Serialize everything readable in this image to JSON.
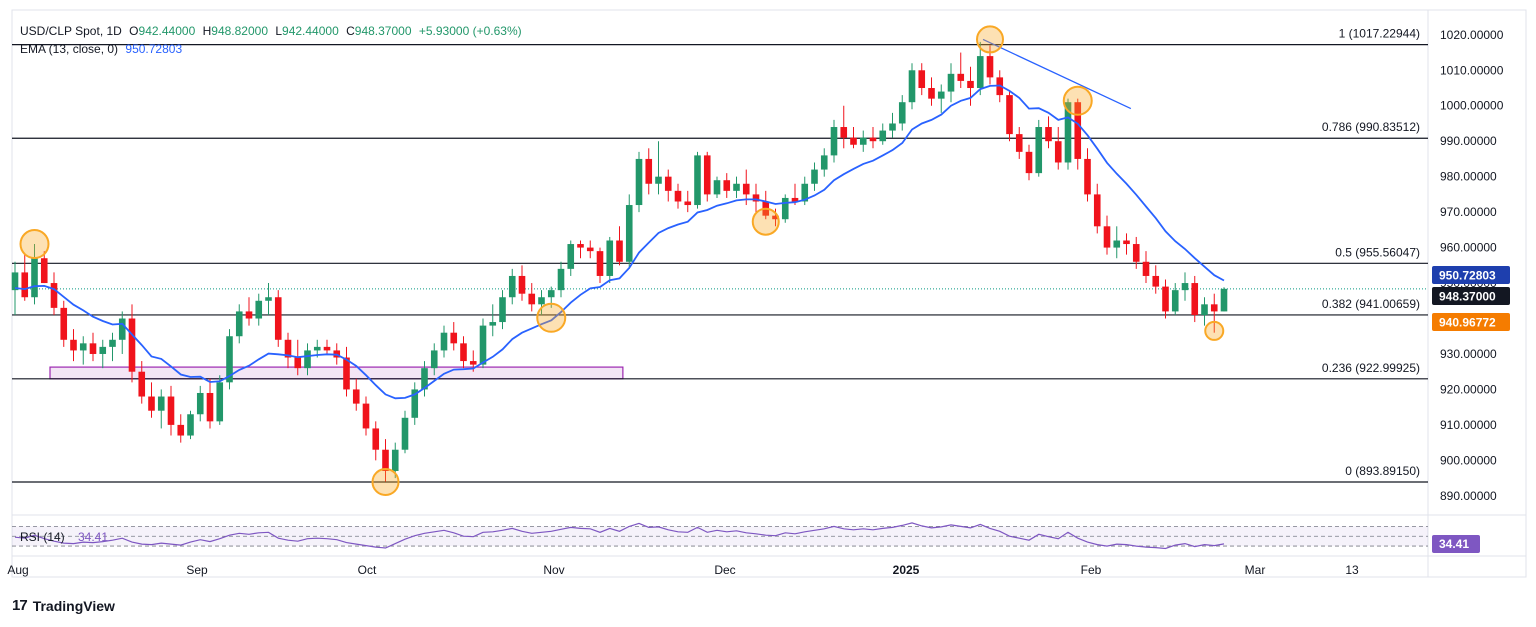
{
  "header": {
    "symbol_label": "USD/CLP Spot, 1D",
    "o_label": "O",
    "o_value": "942.44000",
    "h_label": "H",
    "h_value": "948.82000",
    "l_label": "L",
    "l_value": "942.44000",
    "c_label": "C",
    "c_value": "948.37000",
    "change": "+5.93000 (+0.63%)",
    "ema_label": "EMA (13, close, 0)",
    "ema_value": "950.72803"
  },
  "branding": {
    "logo_text": "TradingView"
  },
  "colors": {
    "up": "#22976a",
    "down": "#f0131c",
    "ema": "#2962ff",
    "fib_line": "#131722",
    "rsi": "#7e57c2",
    "marker": "#f9a825",
    "box_fill": "#f3e5f5",
    "box_border": "#9c27b0",
    "price_tag_bg": "#131722",
    "ema_tag_bg": "#1e3fae",
    "orange_tag_bg": "#f57c00",
    "rsi_tag_bg": "#7e57c2"
  },
  "chart_data": {
    "type": "candlestick",
    "title": "USD/CLP Spot, 1D",
    "x_labels": [
      "Aug",
      "Sep",
      "Oct",
      "Nov",
      "Dec",
      "2025",
      "Feb",
      "Mar",
      "13"
    ],
    "y_ticks": [
      "1020.00000",
      "1010.00000",
      "1000.00000",
      "990.00000",
      "980.00000",
      "970.00000",
      "960.00000",
      "950.00000",
      "940.00000",
      "930.00000",
      "920.00000",
      "910.00000",
      "900.00000",
      "890.00000"
    ],
    "ylim": [
      886,
      1027
    ],
    "fib_levels": [
      {
        "label": "1 (1017.22944)",
        "value": 1017.22944
      },
      {
        "label": "0.786 (990.83512)",
        "value": 990.83512
      },
      {
        "label": "0.5 (955.56047)",
        "value": 955.56047
      },
      {
        "label": "0.382 (941.00659)",
        "value": 941.00659
      },
      {
        "label": "0.236 (922.99925)",
        "value": 922.99925
      },
      {
        "label": "0 (893.89150)",
        "value": 893.8915
      }
    ],
    "price_tags": [
      {
        "label": "950.72803",
        "value": 950.72803,
        "kind": "ema"
      },
      {
        "label": "948.37000",
        "value": 948.37,
        "kind": "price"
      },
      {
        "label": "940.96772",
        "value": 940.96772,
        "kind": "orange"
      }
    ],
    "last_price": 948.37,
    "support_box": {
      "x0": 0.0,
      "x1": 0.43,
      "top": 926.3,
      "bottom": 923.0
    },
    "trendline": {
      "x0": 0.94,
      "v0": 1018.7,
      "x1": 1.115,
      "v1": 999.2
    },
    "candles": [
      {
        "o": 948,
        "h": 956,
        "l": 941,
        "c": 953
      },
      {
        "o": 953,
        "h": 958,
        "l": 945,
        "c": 946
      },
      {
        "o": 946,
        "h": 961,
        "l": 944,
        "c": 957
      },
      {
        "o": 957,
        "h": 959,
        "l": 950,
        "c": 950
      },
      {
        "o": 950,
        "h": 953,
        "l": 941,
        "c": 943
      },
      {
        "o": 943,
        "h": 945,
        "l": 932,
        "c": 934
      },
      {
        "o": 934,
        "h": 937,
        "l": 928,
        "c": 931
      },
      {
        "o": 931,
        "h": 935,
        "l": 927,
        "c": 933
      },
      {
        "o": 933,
        "h": 936,
        "l": 928,
        "c": 930
      },
      {
        "o": 930,
        "h": 934,
        "l": 926,
        "c": 932
      },
      {
        "o": 932,
        "h": 936,
        "l": 928,
        "c": 934
      },
      {
        "o": 934,
        "h": 942,
        "l": 930,
        "c": 940
      },
      {
        "o": 940,
        "h": 944,
        "l": 922,
        "c": 925
      },
      {
        "o": 925,
        "h": 928,
        "l": 916,
        "c": 918
      },
      {
        "o": 918,
        "h": 922,
        "l": 912,
        "c": 914
      },
      {
        "o": 914,
        "h": 920,
        "l": 909,
        "c": 918
      },
      {
        "o": 918,
        "h": 921,
        "l": 907,
        "c": 910
      },
      {
        "o": 910,
        "h": 913,
        "l": 905,
        "c": 907
      },
      {
        "o": 907,
        "h": 914,
        "l": 906,
        "c": 913
      },
      {
        "o": 913,
        "h": 921,
        "l": 911,
        "c": 919
      },
      {
        "o": 919,
        "h": 923,
        "l": 909,
        "c": 911
      },
      {
        "o": 911,
        "h": 924,
        "l": 910,
        "c": 922
      },
      {
        "o": 922,
        "h": 937,
        "l": 920,
        "c": 935
      },
      {
        "o": 935,
        "h": 944,
        "l": 933,
        "c": 942
      },
      {
        "o": 942,
        "h": 946,
        "l": 938,
        "c": 940
      },
      {
        "o": 940,
        "h": 947,
        "l": 938,
        "c": 945
      },
      {
        "o": 945,
        "h": 950,
        "l": 941,
        "c": 946
      },
      {
        "o": 946,
        "h": 948,
        "l": 932,
        "c": 934
      },
      {
        "o": 934,
        "h": 936,
        "l": 926,
        "c": 929
      },
      {
        "o": 929,
        "h": 934,
        "l": 924,
        "c": 926
      },
      {
        "o": 926,
        "h": 933,
        "l": 924,
        "c": 931
      },
      {
        "o": 931,
        "h": 934,
        "l": 929,
        "c": 932
      },
      {
        "o": 932,
        "h": 934,
        "l": 930,
        "c": 931
      },
      {
        "o": 931,
        "h": 933,
        "l": 927,
        "c": 929
      },
      {
        "o": 929,
        "h": 932,
        "l": 918,
        "c": 920
      },
      {
        "o": 920,
        "h": 923,
        "l": 914,
        "c": 916
      },
      {
        "o": 916,
        "h": 918,
        "l": 907,
        "c": 909
      },
      {
        "o": 909,
        "h": 911,
        "l": 900,
        "c": 903
      },
      {
        "o": 903,
        "h": 906,
        "l": 894,
        "c": 897
      },
      {
        "o": 897,
        "h": 905,
        "l": 895,
        "c": 903
      },
      {
        "o": 903,
        "h": 914,
        "l": 902,
        "c": 912
      },
      {
        "o": 912,
        "h": 922,
        "l": 910,
        "c": 920
      },
      {
        "o": 920,
        "h": 928,
        "l": 918,
        "c": 926
      },
      {
        "o": 926,
        "h": 933,
        "l": 924,
        "c": 931
      },
      {
        "o": 931,
        "h": 938,
        "l": 929,
        "c": 936
      },
      {
        "o": 936,
        "h": 939,
        "l": 931,
        "c": 933
      },
      {
        "o": 933,
        "h": 935,
        "l": 926,
        "c": 928
      },
      {
        "o": 928,
        "h": 931,
        "l": 925,
        "c": 927
      },
      {
        "o": 927,
        "h": 940,
        "l": 926,
        "c": 938
      },
      {
        "o": 938,
        "h": 944,
        "l": 935,
        "c": 939
      },
      {
        "o": 939,
        "h": 948,
        "l": 937,
        "c": 946
      },
      {
        "o": 946,
        "h": 954,
        "l": 944,
        "c": 952
      },
      {
        "o": 952,
        "h": 955,
        "l": 945,
        "c": 947
      },
      {
        "o": 947,
        "h": 950,
        "l": 942,
        "c": 944
      },
      {
        "o": 944,
        "h": 948,
        "l": 941,
        "c": 946
      },
      {
        "o": 946,
        "h": 949,
        "l": 943,
        "c": 948
      },
      {
        "o": 948,
        "h": 956,
        "l": 946,
        "c": 954
      },
      {
        "o": 954,
        "h": 962,
        "l": 952,
        "c": 961
      },
      {
        "o": 961,
        "h": 962,
        "l": 957,
        "c": 960
      },
      {
        "o": 960,
        "h": 962,
        "l": 957,
        "c": 959
      },
      {
        "o": 959,
        "h": 960,
        "l": 950,
        "c": 952
      },
      {
        "o": 952,
        "h": 963,
        "l": 950,
        "c": 962
      },
      {
        "o": 962,
        "h": 966,
        "l": 955,
        "c": 956
      },
      {
        "o": 956,
        "h": 975,
        "l": 954,
        "c": 972
      },
      {
        "o": 972,
        "h": 987,
        "l": 970,
        "c": 985
      },
      {
        "o": 985,
        "h": 988,
        "l": 975,
        "c": 978
      },
      {
        "o": 978,
        "h": 990,
        "l": 975,
        "c": 980
      },
      {
        "o": 980,
        "h": 982,
        "l": 973,
        "c": 976
      },
      {
        "o": 976,
        "h": 978,
        "l": 971,
        "c": 973
      },
      {
        "o": 973,
        "h": 976,
        "l": 970,
        "c": 972
      },
      {
        "o": 972,
        "h": 987,
        "l": 971,
        "c": 986
      },
      {
        "o": 986,
        "h": 987,
        "l": 973,
        "c": 975
      },
      {
        "o": 975,
        "h": 980,
        "l": 974,
        "c": 979
      },
      {
        "o": 979,
        "h": 981,
        "l": 974,
        "c": 976
      },
      {
        "o": 976,
        "h": 980,
        "l": 974,
        "c": 978
      },
      {
        "o": 978,
        "h": 982,
        "l": 972,
        "c": 975
      },
      {
        "o": 975,
        "h": 978,
        "l": 970,
        "c": 973
      },
      {
        "o": 973,
        "h": 976,
        "l": 968,
        "c": 969
      },
      {
        "o": 969,
        "h": 971,
        "l": 966,
        "c": 968
      },
      {
        "o": 968,
        "h": 975,
        "l": 967,
        "c": 974
      },
      {
        "o": 974,
        "h": 978,
        "l": 972,
        "c": 973
      },
      {
        "o": 973,
        "h": 980,
        "l": 972,
        "c": 978
      },
      {
        "o": 978,
        "h": 984,
        "l": 976,
        "c": 982
      },
      {
        "o": 982,
        "h": 988,
        "l": 980,
        "c": 986
      },
      {
        "o": 986,
        "h": 996,
        "l": 984,
        "c": 994
      },
      {
        "o": 994,
        "h": 1000,
        "l": 988,
        "c": 991
      },
      {
        "o": 991,
        "h": 994,
        "l": 988,
        "c": 989
      },
      {
        "o": 989,
        "h": 993,
        "l": 987,
        "c": 991
      },
      {
        "o": 991,
        "h": 994,
        "l": 988,
        "c": 990
      },
      {
        "o": 990,
        "h": 995,
        "l": 989,
        "c": 993
      },
      {
        "o": 993,
        "h": 998,
        "l": 991,
        "c": 995
      },
      {
        "o": 995,
        "h": 1003,
        "l": 993,
        "c": 1001
      },
      {
        "o": 1001,
        "h": 1012,
        "l": 999,
        "c": 1010
      },
      {
        "o": 1010,
        "h": 1012,
        "l": 1003,
        "c": 1005
      },
      {
        "o": 1005,
        "h": 1008,
        "l": 1000,
        "c": 1002
      },
      {
        "o": 1002,
        "h": 1006,
        "l": 998,
        "c": 1004
      },
      {
        "o": 1004,
        "h": 1012,
        "l": 1001,
        "c": 1009
      },
      {
        "o": 1009,
        "h": 1015,
        "l": 1005,
        "c": 1007
      },
      {
        "o": 1007,
        "h": 1011,
        "l": 1000,
        "c": 1005
      },
      {
        "o": 1005,
        "h": 1018,
        "l": 1003,
        "c": 1014
      },
      {
        "o": 1014,
        "h": 1017,
        "l": 1006,
        "c": 1008
      },
      {
        "o": 1008,
        "h": 1010,
        "l": 1001,
        "c": 1003
      },
      {
        "o": 1003,
        "h": 1004,
        "l": 990,
        "c": 992
      },
      {
        "o": 992,
        "h": 994,
        "l": 985,
        "c": 987
      },
      {
        "o": 987,
        "h": 989,
        "l": 979,
        "c": 981
      },
      {
        "o": 981,
        "h": 996,
        "l": 980,
        "c": 994
      },
      {
        "o": 994,
        "h": 997,
        "l": 988,
        "c": 990
      },
      {
        "o": 990,
        "h": 994,
        "l": 982,
        "c": 984
      },
      {
        "o": 984,
        "h": 1002,
        "l": 982,
        "c": 1001
      },
      {
        "o": 1001,
        "h": 1002,
        "l": 982,
        "c": 985
      },
      {
        "o": 985,
        "h": 988,
        "l": 973,
        "c": 975
      },
      {
        "o": 975,
        "h": 978,
        "l": 964,
        "c": 966
      },
      {
        "o": 966,
        "h": 969,
        "l": 958,
        "c": 960
      },
      {
        "o": 960,
        "h": 966,
        "l": 957,
        "c": 962
      },
      {
        "o": 962,
        "h": 964,
        "l": 958,
        "c": 961
      },
      {
        "o": 961,
        "h": 963,
        "l": 954,
        "c": 956
      },
      {
        "o": 956,
        "h": 959,
        "l": 950,
        "c": 952
      },
      {
        "o": 952,
        "h": 955,
        "l": 947,
        "c": 949
      },
      {
        "o": 949,
        "h": 951,
        "l": 940,
        "c": 942
      },
      {
        "o": 942,
        "h": 950,
        "l": 941,
        "c": 948
      },
      {
        "o": 948,
        "h": 953,
        "l": 945,
        "c": 950
      },
      {
        "o": 950,
        "h": 952,
        "l": 939,
        "c": 941
      },
      {
        "o": 941,
        "h": 946,
        "l": 938,
        "c": 944
      },
      {
        "o": 944,
        "h": 947,
        "l": 936,
        "c": 942
      },
      {
        "o": 942,
        "h": 948.82,
        "l": 942,
        "c": 948.37
      }
    ],
    "ema": [
      948.6,
      948.3,
      949.1,
      949.2,
      948.3,
      946.1,
      943.9,
      942.3,
      940.5,
      939.3,
      938.3,
      938.5,
      935.5,
      932.5,
      929.3,
      928.6,
      926.5,
      924.2,
      923.5,
      923.6,
      922.1,
      922.3,
      923.8,
      925.5,
      926.7,
      928.5,
      930.1,
      929.9,
      929.6,
      929.1,
      929.4,
      929.7,
      929.9,
      929.8,
      928.4,
      926.6,
      924.0,
      921.2,
      918.6,
      917.5,
      917.6,
      918.6,
      920.4,
      922.4,
      924.4,
      925.6,
      925.7,
      925.9,
      927.6,
      929.2,
      931.3,
      934.2,
      936.0,
      937.2,
      938.4,
      939.5,
      941.8,
      944.5,
      946.7,
      948.5,
      948.9,
      950.8,
      951.3,
      954.3,
      958.6,
      961.4,
      964.1,
      965.5,
      966.5,
      967.3,
      969.9,
      970.6,
      971.8,
      972.5,
      973.3,
      973.6,
      973.6,
      973.0,
      972.3,
      972.6,
      972.8,
      973.5,
      974.7,
      976.3,
      979.0,
      980.7,
      982.2,
      983.6,
      984.5,
      986.0,
      987.5,
      989.5,
      993.3,
      995.0,
      996.0,
      997.5,
      1000.0,
      1001.4,
      1002.2,
      1004.7,
      1005.6,
      1005.7,
      1004.2,
      1002.2,
      999.2,
      999.3,
      998.0,
      996.0,
      996.7,
      994.9,
      991.7,
      987.9,
      983.9,
      980.8,
      978.0,
      974.9,
      971.6,
      968.3,
      964.6,
      961.8,
      959.6,
      957.0,
      954.6,
      952.2,
      950.73
    ],
    "rsi": [
      48,
      46,
      52,
      45,
      40,
      36,
      35,
      38,
      37,
      39,
      42,
      46,
      38,
      34,
      33,
      36,
      34,
      32,
      38,
      43,
      39,
      45,
      52,
      56,
      54,
      57,
      58,
      46,
      42,
      40,
      45,
      46,
      45,
      43,
      37,
      34,
      31,
      28,
      26,
      35,
      44,
      51,
      56,
      59,
      62,
      57,
      50,
      49,
      58,
      59,
      62,
      66,
      60,
      56,
      58,
      60,
      64,
      68,
      66,
      65,
      58,
      66,
      60,
      70,
      76,
      68,
      69,
      63,
      59,
      58,
      68,
      58,
      62,
      59,
      61,
      57,
      55,
      52,
      51,
      57,
      55,
      59,
      62,
      65,
      70,
      65,
      63,
      65,
      63,
      66,
      68,
      72,
      77,
      71,
      67,
      69,
      73,
      70,
      67,
      74,
      66,
      60,
      50,
      46,
      42,
      54,
      49,
      45,
      58,
      46,
      38,
      33,
      30,
      34,
      33,
      30,
      28,
      27,
      25,
      32,
      35,
      29,
      33,
      31,
      34.41
    ],
    "rsi_label": "RSI (14)",
    "rsi_value": "34.41",
    "rsi_ylim": [
      20,
      85
    ],
    "rsi_bands": [
      70,
      50,
      30
    ],
    "circle_markers": [
      {
        "i": 2,
        "v": 961
      },
      {
        "i": 38,
        "v": 893.9
      },
      {
        "i": 55,
        "v": 940.2
      },
      {
        "i": 77,
        "v": 967.3
      },
      {
        "i": 100,
        "v": 1018.7
      },
      {
        "i": 109,
        "v": 1001.4
      },
      {
        "i": 123,
        "v": 936.5
      }
    ]
  }
}
